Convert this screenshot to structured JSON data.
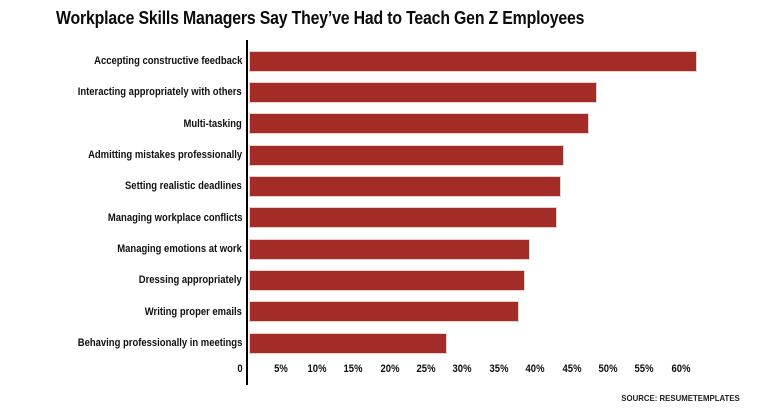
{
  "title": "Workplace Skills Managers Say They’ve Had to Teach Gen Z Employees",
  "source": "SOURCE: RESUMETEMPLATES",
  "colors": {
    "bar_fill": "#a32c26",
    "bar_outline": "#eccfcb",
    "axis": "#000000",
    "background": "#ffffff",
    "text": "#0b0b0b"
  },
  "chart_data": {
    "type": "bar",
    "orientation": "horizontal",
    "title": "Workplace Skills Managers Say They’ve Had to Teach Gen Z Employees",
    "categories": [
      "Accepting constructive feedback",
      "Interacting appropriately with others",
      "Multi-tasking",
      "Admitting mistakes professionally",
      "Setting realistic deadlines",
      "Managing workplace conflicts",
      "Managing emotions at work",
      "Dressing appropriately",
      "Writing proper emails",
      "Behaving professionally in meetings"
    ],
    "values": [
      62.2,
      48.5,
      47.4,
      43.9,
      43.5,
      43.0,
      39.3,
      38.6,
      37.8,
      27.8
    ],
    "unit": "%",
    "xlabel": "",
    "ylabel": "",
    "x_ticks": [
      "0",
      "5%",
      "10%",
      "15%",
      "20%",
      "25%",
      "30%",
      "35%",
      "40%",
      "45%",
      "50%",
      "55%",
      "60%"
    ],
    "x_tick_values": [
      0,
      5,
      10,
      15,
      20,
      25,
      30,
      35,
      40,
      45,
      50,
      55,
      60
    ],
    "xlim": [
      0,
      72
    ],
    "grid": false,
    "legend": "none",
    "source": "SOURCE: RESUMETEMPLATES"
  }
}
